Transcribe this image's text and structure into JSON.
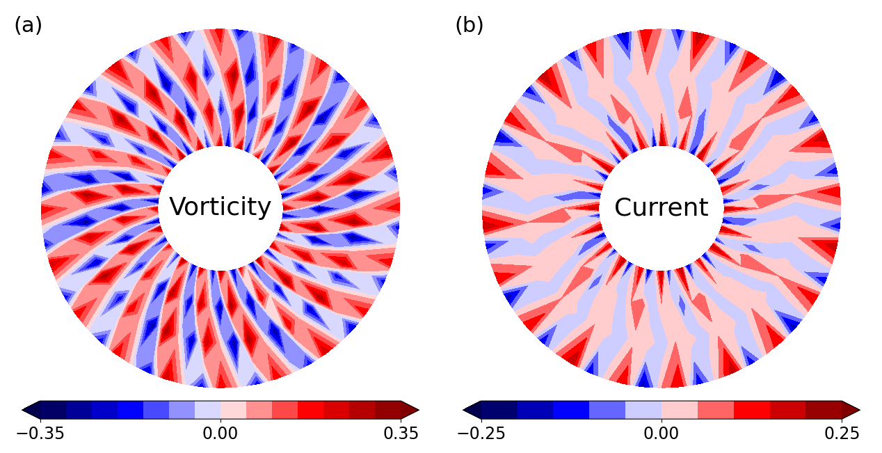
{
  "chart_data": [
    {
      "type": "contour",
      "panel_label": "(a)",
      "annotation": "Vorticity",
      "r": [
        0.35,
        0.55,
        0.75,
        1.0
      ],
      "theta": [
        0,
        6,
        12,
        18,
        24,
        30,
        36,
        42,
        48,
        54,
        60,
        66,
        72,
        78,
        84,
        90,
        96,
        102,
        108,
        114,
        120,
        126,
        132,
        138,
        144,
        150,
        156,
        162,
        168,
        174,
        180,
        186,
        192,
        198,
        204,
        210,
        216,
        222,
        228,
        234,
        240,
        246,
        252,
        258,
        264,
        270,
        276,
        282,
        288,
        294,
        300,
        306,
        312,
        318,
        324,
        330,
        336,
        342,
        348,
        354
      ],
      "cells": [
        [
          0.3,
          0.03,
          -0.3,
          0.25,
          0.03,
          -0.25,
          0.3,
          0.03,
          -0.3,
          0.2,
          0.03,
          -0.25,
          0.3,
          0.03,
          -0.3,
          0.25,
          0.03,
          -0.2,
          0.3,
          0.03,
          -0.3,
          0.3,
          0.03,
          -0.25,
          0.2,
          0.03,
          -0.2,
          0.3,
          0.03,
          -0.3,
          0.25,
          0.03,
          -0.3,
          0.3,
          0.03,
          -0.25,
          0.2,
          0.03,
          -0.2,
          0.3,
          0.03,
          -0.3,
          0.25,
          0.03,
          -0.25,
          0.3,
          0.03,
          -0.3,
          0.2,
          0.03,
          -0.3,
          0.3,
          0.03,
          -0.25,
          0.25,
          0.03,
          -0.2,
          0.3,
          0.03,
          -0.3
        ],
        [
          -0.3,
          0.3,
          0.03,
          -0.25,
          0.25,
          0.03,
          -0.3,
          0.3,
          0.03,
          -0.25,
          0.2,
          0.03,
          -0.3,
          0.3,
          0.03,
          -0.2,
          0.25,
          0.03,
          -0.3,
          0.3,
          0.03,
          -0.25,
          0.3,
          0.03,
          -0.2,
          0.2,
          0.03,
          -0.3,
          0.3,
          0.03,
          -0.3,
          0.25,
          0.03,
          -0.25,
          0.3,
          0.03,
          -0.2,
          0.2,
          0.03,
          -0.3,
          0.3,
          0.03,
          -0.25,
          0.25,
          0.03,
          -0.3,
          0.3,
          0.03,
          -0.3,
          0.2,
          0.03,
          -0.25,
          0.3,
          0.03,
          -0.2,
          0.25,
          0.03,
          -0.3,
          0.3,
          0.03
        ],
        [
          0.03,
          -0.3,
          0.3,
          0.03,
          -0.25,
          0.25,
          0.03,
          -0.3,
          0.3,
          0.03,
          -0.25,
          0.2,
          0.03,
          -0.3,
          0.3,
          0.03,
          -0.2,
          0.25,
          0.03,
          -0.3,
          0.3,
          0.03,
          -0.25,
          0.3,
          0.03,
          -0.2,
          0.2,
          0.03,
          -0.3,
          0.3,
          0.03,
          -0.3,
          0.25,
          0.03,
          -0.25,
          0.3,
          0.03,
          -0.2,
          0.2,
          0.03,
          -0.3,
          0.3,
          0.03,
          -0.25,
          0.25,
          0.03,
          -0.3,
          0.3,
          0.03,
          -0.3,
          0.2,
          0.03,
          -0.25,
          0.3,
          0.03,
          -0.2,
          0.25,
          0.03,
          -0.3,
          0.3
        ],
        [
          0.2,
          0.03,
          -0.2,
          0.25,
          0.03,
          -0.2,
          0.2,
          0.03,
          -0.25,
          0.2,
          0.03,
          -0.2,
          0.25,
          0.03,
          -0.25,
          0.2,
          0.03,
          -0.2,
          0.2,
          0.03,
          -0.2,
          0.25,
          0.03,
          -0.2,
          0.2,
          0.03,
          -0.2,
          0.2,
          0.03,
          -0.25,
          0.2,
          0.03,
          -0.2,
          0.25,
          0.03,
          -0.2,
          0.2,
          0.03,
          -0.2,
          0.2,
          0.03,
          -0.25,
          0.25,
          0.03,
          -0.2,
          0.2,
          0.03,
          -0.2,
          0.2,
          0.03,
          -0.2,
          0.25,
          0.03,
          -0.25,
          0.2,
          0.03,
          -0.2,
          0.2,
          0.03,
          -0.2
        ]
      ],
      "colorbar": {
        "range": [
          -0.35,
          0.35
        ],
        "levels": [
          -0.35,
          -0.3,
          -0.25,
          -0.2,
          -0.15,
          -0.1,
          -0.05,
          0.0,
          0.05,
          0.1,
          0.15,
          0.2,
          0.25,
          0.3,
          0.35
        ],
        "ticks": [
          {
            "value": -0.35,
            "label": "−0.35"
          },
          {
            "value": 0,
            "label": "0.00"
          },
          0.35
        ]
      }
    },
    {
      "type": "contour",
      "panel_label": "(b)",
      "annotation": "Current",
      "r": [
        0.35,
        0.55,
        0.75,
        1.0
      ],
      "theta": [
        0,
        6,
        12,
        18,
        24,
        30,
        36,
        42,
        48,
        54,
        60,
        66,
        72,
        78,
        84,
        90,
        96,
        102,
        108,
        114,
        120,
        126,
        132,
        138,
        144,
        150,
        156,
        162,
        168,
        174,
        180,
        186,
        192,
        198,
        204,
        210,
        216,
        222,
        228,
        234,
        240,
        246,
        252,
        258,
        264,
        270,
        276,
        282,
        288,
        294,
        300,
        306,
        312,
        318,
        324,
        330,
        336,
        342,
        348,
        354
      ],
      "cells": [
        [
          0.2,
          -0.2,
          0.05,
          0.15,
          -0.2,
          0.0,
          0.2,
          -0.15,
          0.05,
          0.2,
          -0.2,
          0.0,
          0.15,
          -0.15,
          0.05,
          0.2,
          -0.2,
          0.05,
          0.15,
          -0.2,
          0.0,
          0.2,
          -0.15,
          0.05,
          0.2,
          -0.2,
          0.0,
          0.15,
          -0.2,
          0.05,
          0.2,
          -0.15,
          0.05,
          0.2,
          -0.2,
          0.0,
          0.15,
          -0.15,
          0.05,
          0.2,
          -0.2,
          0.05,
          0.15,
          -0.2,
          0.0,
          0.2,
          -0.15,
          0.05,
          0.2,
          -0.2,
          0.0,
          0.15,
          -0.2,
          0.05,
          0.2,
          -0.15,
          0.05,
          0.2,
          -0.2,
          0.0
        ],
        [
          0.05,
          0.1,
          -0.1,
          0.03,
          0.05,
          -0.05,
          0.05,
          0.1,
          -0.05,
          0.03,
          0.05,
          -0.1,
          0.05,
          0.1,
          -0.05,
          0.03,
          0.05,
          -0.05,
          0.05,
          0.1,
          -0.1,
          0.03,
          0.05,
          -0.05,
          0.05,
          0.1,
          -0.05,
          0.03,
          0.05,
          -0.1,
          0.05,
          0.1,
          -0.05,
          0.03,
          0.05,
          -0.05,
          0.05,
          0.1,
          -0.1,
          0.03,
          0.05,
          -0.05,
          0.05,
          0.1,
          -0.05,
          0.03,
          0.05,
          -0.1,
          0.05,
          0.1,
          -0.05,
          0.03,
          0.05,
          -0.05,
          0.05,
          0.1,
          -0.1,
          0.03,
          0.05,
          -0.05
        ],
        [
          -0.05,
          0.05,
          0.03,
          -0.03,
          0.03,
          0.05,
          -0.05,
          0.05,
          0.03,
          -0.03,
          0.05,
          0.03,
          -0.05,
          0.03,
          0.05,
          -0.05,
          0.05,
          0.03,
          -0.03,
          0.03,
          0.05,
          -0.05,
          0.05,
          0.03,
          -0.03,
          0.05,
          0.03,
          -0.05,
          0.03,
          0.05,
          -0.05,
          0.05,
          0.03,
          -0.03,
          0.03,
          0.05,
          -0.05,
          0.05,
          0.03,
          -0.03,
          0.05,
          0.03,
          -0.05,
          0.03,
          0.05,
          -0.05,
          0.05,
          0.03,
          -0.03,
          0.03,
          0.05,
          -0.05,
          0.05,
          0.03,
          -0.03,
          0.05,
          0.03,
          -0.05,
          0.03,
          0.05
        ],
        [
          0.03,
          0.15,
          -0.15,
          0.05,
          0.2,
          -0.15,
          0.03,
          0.15,
          -0.2,
          0.05,
          0.15,
          -0.15,
          0.03,
          0.2,
          -0.15,
          0.05,
          0.15,
          -0.2,
          0.03,
          0.15,
          -0.15,
          0.05,
          0.2,
          -0.15,
          0.03,
          0.15,
          -0.2,
          0.05,
          0.15,
          -0.15,
          0.03,
          0.2,
          -0.15,
          0.05,
          0.15,
          -0.2,
          0.03,
          0.15,
          -0.15,
          0.05,
          0.2,
          -0.15,
          0.03,
          0.15,
          -0.2,
          0.05,
          0.15,
          -0.15,
          0.03,
          0.2,
          -0.15,
          0.05,
          0.15,
          -0.2,
          0.03,
          0.15,
          -0.15,
          0.05,
          0.2,
          -0.15
        ]
      ],
      "colorbar": {
        "range": [
          -0.25,
          0.25
        ],
        "levels": [
          -0.25,
          -0.2,
          -0.15,
          -0.1,
          -0.05,
          0.0,
          0.05,
          0.1,
          0.15,
          0.2,
          0.25
        ],
        "ticks": [
          {
            "value": -0.25,
            "label": "−0.25"
          },
          {
            "value": 0,
            "label": "0.00"
          },
          0.25
        ]
      }
    }
  ]
}
